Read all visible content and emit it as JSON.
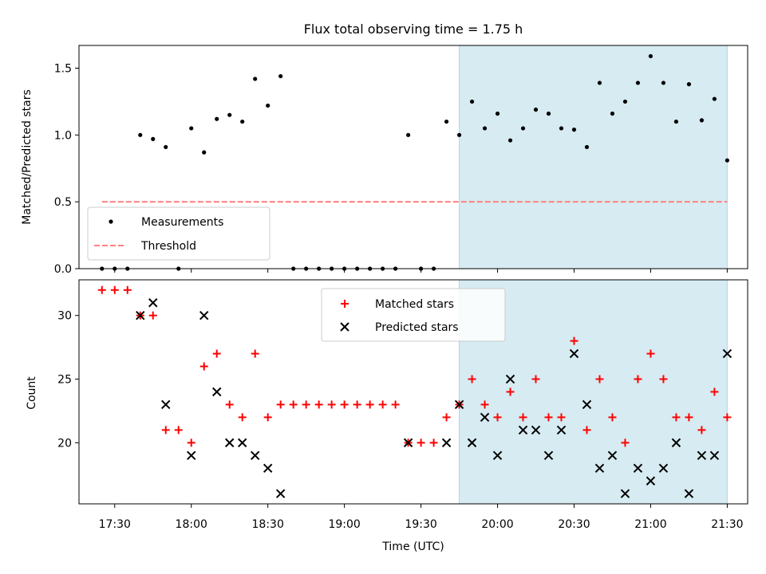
{
  "chart_data": [
    {
      "type": "scatter",
      "panel": "top",
      "title": "Flux total observing time = 1.75 h",
      "ylabel": "Matched/Predicted stars",
      "xlabel": "",
      "ylim": [
        0,
        1.67
      ],
      "yticks": [
        0.0,
        0.5,
        1.0,
        1.5
      ],
      "ytick_labels": [
        "0.0",
        "0.5",
        "1.0",
        "1.5"
      ],
      "shaded_region": {
        "from_min": 1185,
        "to_min": 1290,
        "color": "#add8e6"
      },
      "threshold": {
        "name": "Threshold",
        "value": 0.5,
        "from_min": 1045,
        "to_min": 1290,
        "color": "#ff8080"
      },
      "legend": [
        "Measurements",
        "Threshold"
      ],
      "legend_position": "lower-left",
      "series": [
        {
          "name": "Measurements",
          "marker": "dot",
          "color": "#000000",
          "x": [
            1045,
            1050,
            1055,
            1060,
            1065,
            1070,
            1075,
            1080,
            1085,
            1090,
            1095,
            1100,
            1105,
            1110,
            1115,
            1120,
            1125,
            1130,
            1135,
            1140,
            1145,
            1150,
            1155,
            1160,
            1165,
            1170,
            1175,
            1180,
            1185,
            1190,
            1195,
            1200,
            1205,
            1210,
            1215,
            1220,
            1225,
            1230,
            1235,
            1240,
            1245,
            1250,
            1255,
            1260,
            1265,
            1270,
            1275,
            1280,
            1285,
            1290
          ],
          "y": [
            0,
            0,
            0,
            1.0,
            0.97,
            0.91,
            0,
            1.05,
            0.87,
            1.12,
            1.15,
            1.1,
            1.42,
            1.22,
            1.44,
            0,
            0,
            0,
            0,
            0,
            0,
            0,
            0,
            0,
            1.0,
            0,
            0,
            1.1,
            1.0,
            1.25,
            1.05,
            1.16,
            0.96,
            1.05,
            1.19,
            1.16,
            1.05,
            1.04,
            0.91,
            1.39,
            1.16,
            1.25,
            1.39,
            1.59,
            1.39,
            1.1,
            1.38,
            1.11,
            1.27,
            0.81
          ]
        }
      ]
    },
    {
      "type": "scatter",
      "panel": "bottom",
      "title": "",
      "xlabel": "Time (UTC)",
      "ylabel": "Count",
      "xlim": [
        1036,
        1298
      ],
      "ylim": [
        15.2,
        32.8
      ],
      "xticks": [
        1050,
        1080,
        1110,
        1140,
        1170,
        1200,
        1230,
        1260,
        1290
      ],
      "xtick_labels": [
        "17:30",
        "18:00",
        "18:30",
        "19:00",
        "19:30",
        "20:00",
        "20:30",
        "21:00",
        "21:30"
      ],
      "yticks": [
        20,
        25,
        30
      ],
      "ytick_labels": [
        "20",
        "25",
        "30"
      ],
      "shaded_region": {
        "from_min": 1185,
        "to_min": 1290,
        "color": "#add8e6"
      },
      "legend": [
        "Matched stars",
        "Predicted stars"
      ],
      "legend_position": "upper-center",
      "series": [
        {
          "name": "Matched stars",
          "marker": "plus",
          "color": "#ff0000",
          "x": [
            1045,
            1050,
            1055,
            1060,
            1065,
            1070,
            1075,
            1080,
            1085,
            1090,
            1095,
            1100,
            1105,
            1110,
            1115,
            1120,
            1125,
            1130,
            1135,
            1140,
            1145,
            1150,
            1155,
            1160,
            1165,
            1170,
            1175,
            1180,
            1185,
            1190,
            1195,
            1200,
            1205,
            1210,
            1215,
            1220,
            1225,
            1230,
            1235,
            1240,
            1245,
            1250,
            1255,
            1260,
            1265,
            1270,
            1275,
            1280,
            1285,
            1290
          ],
          "y": [
            32,
            32,
            32,
            30,
            30,
            21,
            21,
            20,
            26,
            27,
            23,
            22,
            27,
            22,
            23,
            23,
            23,
            23,
            23,
            23,
            23,
            23,
            23,
            23,
            20,
            20,
            20,
            22,
            23,
            25,
            23,
            22,
            24,
            22,
            25,
            22,
            22,
            28,
            21,
            25,
            22,
            20,
            25,
            27,
            25,
            22,
            22,
            21,
            24,
            22
          ]
        },
        {
          "name": "Predicted stars",
          "marker": "x",
          "color": "#000000",
          "x": [
            1060,
            1065,
            1070,
            1080,
            1085,
            1090,
            1095,
            1100,
            1105,
            1110,
            1115,
            1165,
            1180,
            1185,
            1190,
            1195,
            1200,
            1205,
            1210,
            1215,
            1220,
            1225,
            1230,
            1235,
            1240,
            1245,
            1250,
            1255,
            1260,
            1265,
            1270,
            1275,
            1280,
            1285,
            1290
          ],
          "y": [
            30,
            31,
            23,
            19,
            30,
            24,
            20,
            20,
            19,
            18,
            16,
            20,
            20,
            23,
            20,
            22,
            19,
            25,
            21,
            21,
            19,
            21,
            27,
            23,
            18,
            19,
            16,
            18,
            17,
            18,
            20,
            16,
            19,
            19,
            27
          ]
        }
      ]
    }
  ]
}
